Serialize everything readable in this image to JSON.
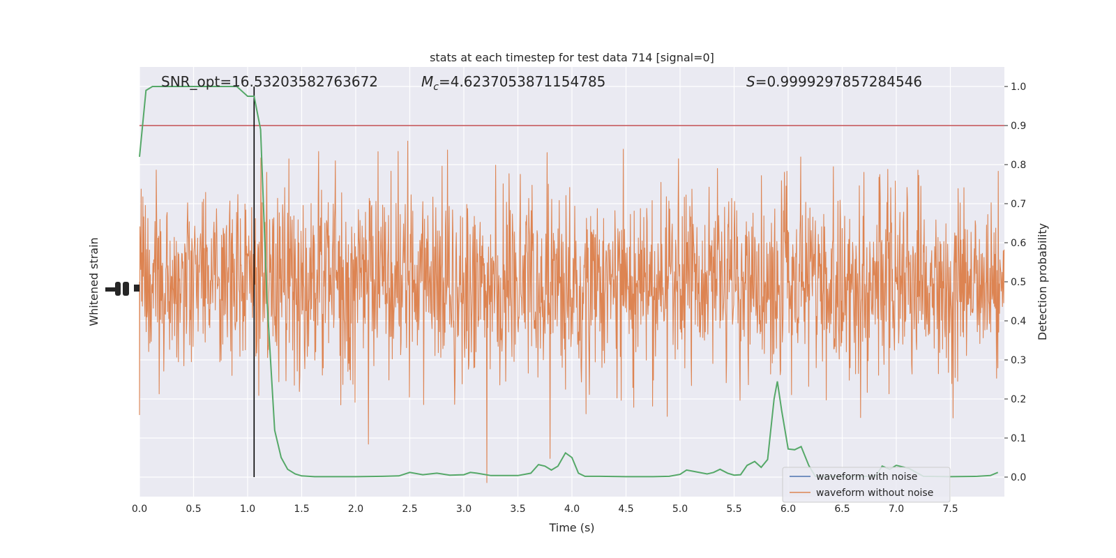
{
  "chart_data": {
    "type": "line",
    "title": "stats at each timestep for test data 714 [signal=0]",
    "xlabel": "Time (s)",
    "ylabel_left": "Whitened strain",
    "ylabel_right": "Detection probability",
    "xlim": [
      0,
      8
    ],
    "ylim_right": [
      -0.05,
      1.05
    ],
    "grid": true,
    "legend_placement": "lower-right",
    "x_ticks": [
      "0.0",
      "0.5",
      "1.0",
      "1.5",
      "2.0",
      "2.5",
      "3.0",
      "3.5",
      "4.0",
      "4.5",
      "5.0",
      "5.5",
      "6.0",
      "6.5",
      "7.0",
      "7.5"
    ],
    "y_right_ticks": [
      "0.0",
      "0.1",
      "0.2",
      "0.3",
      "0.4",
      "0.5",
      "0.6",
      "0.7",
      "0.8",
      "0.9",
      "1.0"
    ],
    "annotations": {
      "snr": "SNR_opt=16.53203582763672",
      "mc_symbol": "M",
      "mc_sub": "c",
      "mc_value": "=4.6237053871154785",
      "s_symbol": "S",
      "s_value": "=0.9999297857284546"
    },
    "threshold": 0.9,
    "marker_time": 1.06,
    "series": [
      {
        "name": "waveform with noise",
        "color": "#4c72b0",
        "kind": "noise"
      },
      {
        "name": "waveform without noise",
        "color": "#dd8452",
        "kind": "noise"
      },
      {
        "color": "#55a868",
        "x": [
          0.0,
          0.06,
          0.12,
          0.25,
          0.5,
          0.75,
          0.9,
          1.0,
          1.06,
          1.12,
          1.18,
          1.25,
          1.31,
          1.37,
          1.44,
          1.5,
          1.62,
          1.75,
          2.0,
          2.25,
          2.4,
          2.5,
          2.62,
          2.75,
          2.87,
          3.0,
          3.06,
          3.12,
          3.25,
          3.5,
          3.62,
          3.69,
          3.75,
          3.81,
          3.87,
          3.94,
          4.0,
          4.06,
          4.12,
          4.25,
          4.5,
          4.75,
          4.9,
          5.0,
          5.06,
          5.12,
          5.25,
          5.31,
          5.37,
          5.44,
          5.5,
          5.56,
          5.62,
          5.69,
          5.75,
          5.81,
          5.87,
          5.9,
          5.94,
          6.0,
          6.06,
          6.12,
          6.19,
          6.25,
          6.5,
          6.75,
          6.81,
          6.87,
          6.94,
          7.0,
          7.12,
          7.25,
          7.5,
          7.75,
          7.87,
          7.94
        ],
        "y": [
          0.82,
          0.99,
          1.0,
          1.0,
          1.0,
          1.0,
          1.0,
          0.975,
          0.975,
          0.89,
          0.45,
          0.12,
          0.05,
          0.02,
          0.008,
          0.003,
          0.001,
          0.001,
          0.001,
          0.002,
          0.003,
          0.012,
          0.006,
          0.01,
          0.005,
          0.006,
          0.012,
          0.01,
          0.004,
          0.004,
          0.01,
          0.032,
          0.028,
          0.018,
          0.028,
          0.062,
          0.05,
          0.01,
          0.002,
          0.002,
          0.001,
          0.001,
          0.002,
          0.007,
          0.018,
          0.015,
          0.008,
          0.012,
          0.02,
          0.01,
          0.005,
          0.006,
          0.03,
          0.04,
          0.025,
          0.045,
          0.2,
          0.245,
          0.17,
          0.072,
          0.07,
          0.078,
          0.03,
          0.002,
          0.002,
          0.002,
          0.003,
          0.028,
          0.02,
          0.03,
          0.022,
          0.002,
          0.001,
          0.002,
          0.004,
          0.012
        ]
      }
    ]
  }
}
